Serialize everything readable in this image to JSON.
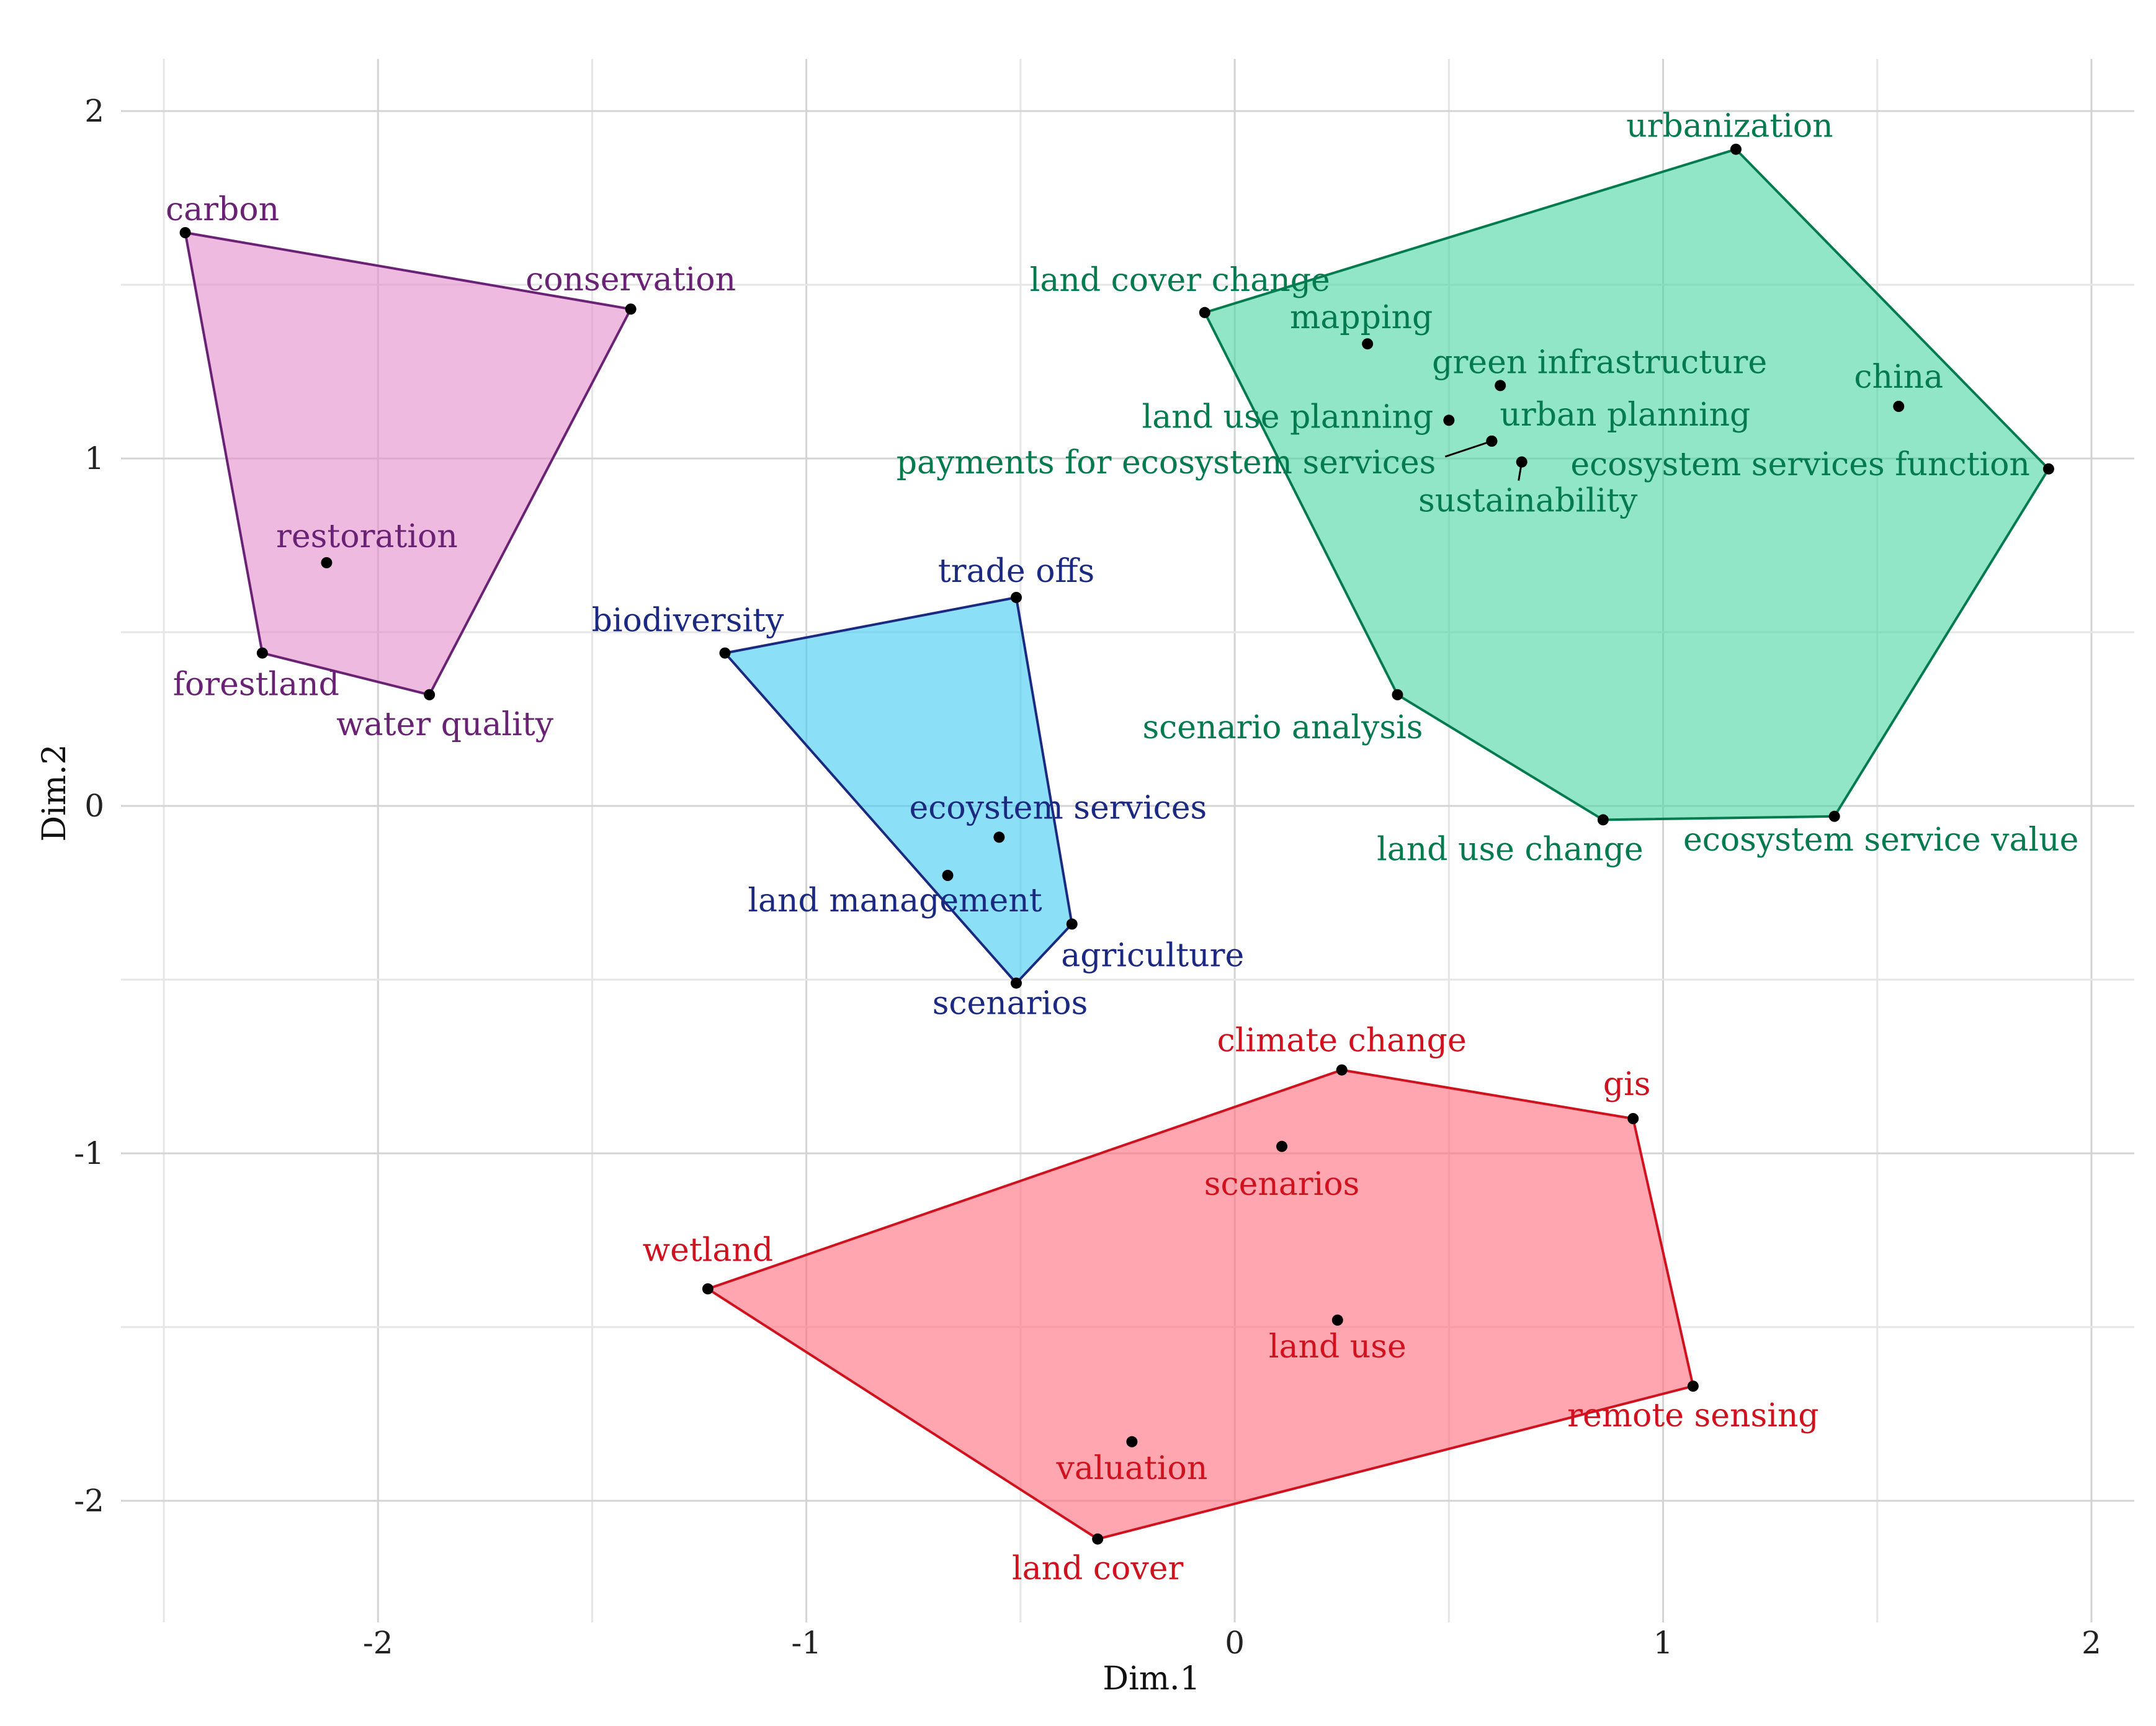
{
  "chart_data": {
    "type": "scatter",
    "title": "",
    "xlabel": "Dim.1",
    "ylabel": "Dim.2",
    "xlim": [
      -2.6,
      2.1
    ],
    "ylim": [
      -2.35,
      2.15
    ],
    "xticks": [
      -2,
      -1,
      0,
      1,
      2
    ],
    "yticks": [
      -2,
      -1,
      0,
      1,
      2
    ],
    "xtick_labels": [
      "-2",
      "-1",
      "0",
      "1",
      "2"
    ],
    "ytick_labels": [
      "-2",
      "-1",
      "0",
      "1",
      "2"
    ],
    "grid": true,
    "clusters": [
      {
        "name": "cluster-purple",
        "fill": "#E28CCB",
        "stroke": "#6A2374",
        "label_color": "#6A2374",
        "hull": [
          "carbon",
          "conservation",
          "water quality",
          "forestland"
        ],
        "points": [
          {
            "label": "carbon",
            "x": -2.45,
            "y": 1.65
          },
          {
            "label": "conservation",
            "x": -1.41,
            "y": 1.43
          },
          {
            "label": "restoration",
            "x": -2.12,
            "y": 0.7
          },
          {
            "label": "forestland",
            "x": -2.27,
            "y": 0.44
          },
          {
            "label": "water quality",
            "x": -1.88,
            "y": 0.32
          }
        ]
      },
      {
        "name": "cluster-blue",
        "fill": "#3ECBF3",
        "stroke": "#1B2A80",
        "label_color": "#1B2A80",
        "hull": [
          "biodiversity",
          "trade offs",
          "agriculture",
          "scenarios"
        ],
        "points": [
          {
            "label": "trade offs",
            "x": -0.51,
            "y": 0.6
          },
          {
            "label": "biodiversity",
            "x": -1.19,
            "y": 0.44
          },
          {
            "label": "ecoystem services",
            "x": -0.55,
            "y": -0.09
          },
          {
            "label": "land management",
            "x": -0.67,
            "y": -0.2
          },
          {
            "label": "agriculture",
            "x": -0.38,
            "y": -0.34
          },
          {
            "label": "scenarios",
            "x": -0.51,
            "y": -0.51
          }
        ]
      },
      {
        "name": "cluster-green",
        "fill": "#48D6A4",
        "stroke": "#047A4F",
        "label_color": "#047A4F",
        "hull": [
          "urbanization",
          "ecosystem services function",
          "ecosystem service value",
          "land use change",
          "scenario analysis",
          "land cover change"
        ],
        "points": [
          {
            "label": "urbanization",
            "x": 1.17,
            "y": 1.89
          },
          {
            "label": "land cover change",
            "x": -0.07,
            "y": 1.42
          },
          {
            "label": "mapping",
            "x": 0.31,
            "y": 1.33
          },
          {
            "label": "green infrastructure",
            "x": 0.62,
            "y": 1.21
          },
          {
            "label": "china",
            "x": 1.55,
            "y": 1.15
          },
          {
            "label": "land use planning",
            "x": 0.5,
            "y": 1.11
          },
          {
            "label": "urban planning",
            "x": 0.6,
            "y": 1.05
          },
          {
            "label": "payments for ecosystem services",
            "x": 0.6,
            "y": 1.05
          },
          {
            "label": "ecosystem services function",
            "x": 1.9,
            "y": 0.97
          },
          {
            "label": "sustainability",
            "x": 0.67,
            "y": 0.99
          },
          {
            "label": "scenario analysis",
            "x": 0.38,
            "y": 0.32
          },
          {
            "label": "land use change",
            "x": 0.86,
            "y": -0.04
          },
          {
            "label": "ecosystem service value",
            "x": 1.4,
            "y": -0.03
          }
        ]
      },
      {
        "name": "cluster-red",
        "fill": "#FF6B7D",
        "stroke": "#D0121F",
        "label_color": "#D0121F",
        "hull": [
          "climate change",
          "gis",
          "remote sensing",
          "land cover",
          "wetland"
        ],
        "points": [
          {
            "label": "climate change",
            "x": 0.25,
            "y": -0.76
          },
          {
            "label": "gis",
            "x": 0.93,
            "y": -0.9
          },
          {
            "label": "scenarios",
            "x": 0.11,
            "y": -0.98
          },
          {
            "label": "wetland",
            "x": -1.23,
            "y": -1.39
          },
          {
            "label": "land use",
            "x": 0.24,
            "y": -1.48
          },
          {
            "label": "remote sensing",
            "x": 1.07,
            "y": -1.67
          },
          {
            "label": "valuation",
            "x": -0.24,
            "y": -1.83
          },
          {
            "label": "land cover",
            "x": -0.32,
            "y": -2.11
          }
        ]
      }
    ]
  }
}
